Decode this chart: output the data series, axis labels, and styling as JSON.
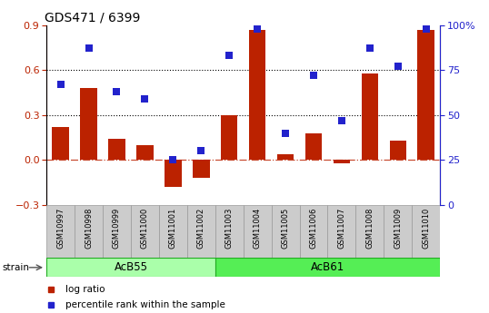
{
  "title": "GDS471 / 6399",
  "samples": [
    "GSM10997",
    "GSM10998",
    "GSM10999",
    "GSM11000",
    "GSM11001",
    "GSM11002",
    "GSM11003",
    "GSM11004",
    "GSM11005",
    "GSM11006",
    "GSM11007",
    "GSM11008",
    "GSM11009",
    "GSM11010"
  ],
  "log_ratio": [
    0.22,
    0.48,
    0.14,
    0.1,
    -0.18,
    -0.12,
    0.3,
    0.87,
    0.04,
    0.18,
    -0.02,
    0.58,
    0.13,
    0.87
  ],
  "percentile_rank": [
    67,
    87,
    63,
    59,
    25,
    30,
    83,
    98,
    40,
    72,
    47,
    87,
    77,
    98
  ],
  "groups": [
    {
      "label": "AcB55",
      "start": 0,
      "end": 5,
      "color": "#aaffaa"
    },
    {
      "label": "AcB61",
      "start": 6,
      "end": 13,
      "color": "#55ee55"
    }
  ],
  "bar_color": "#bb2200",
  "dot_color": "#2222cc",
  "ylim_left": [
    -0.3,
    0.9
  ],
  "ylim_right": [
    0,
    100
  ],
  "yticks_left": [
    -0.3,
    0.0,
    0.3,
    0.6,
    0.9
  ],
  "yticks_right": [
    0,
    25,
    50,
    75,
    100
  ],
  "legend": [
    {
      "label": "log ratio",
      "color": "#bb2200"
    },
    {
      "label": "percentile rank within the sample",
      "color": "#2222cc"
    }
  ],
  "strain_label": "strain",
  "bar_width": 0.6,
  "dot_size": 28,
  "label_box_color": "#cccccc",
  "label_box_edge": "#999999"
}
